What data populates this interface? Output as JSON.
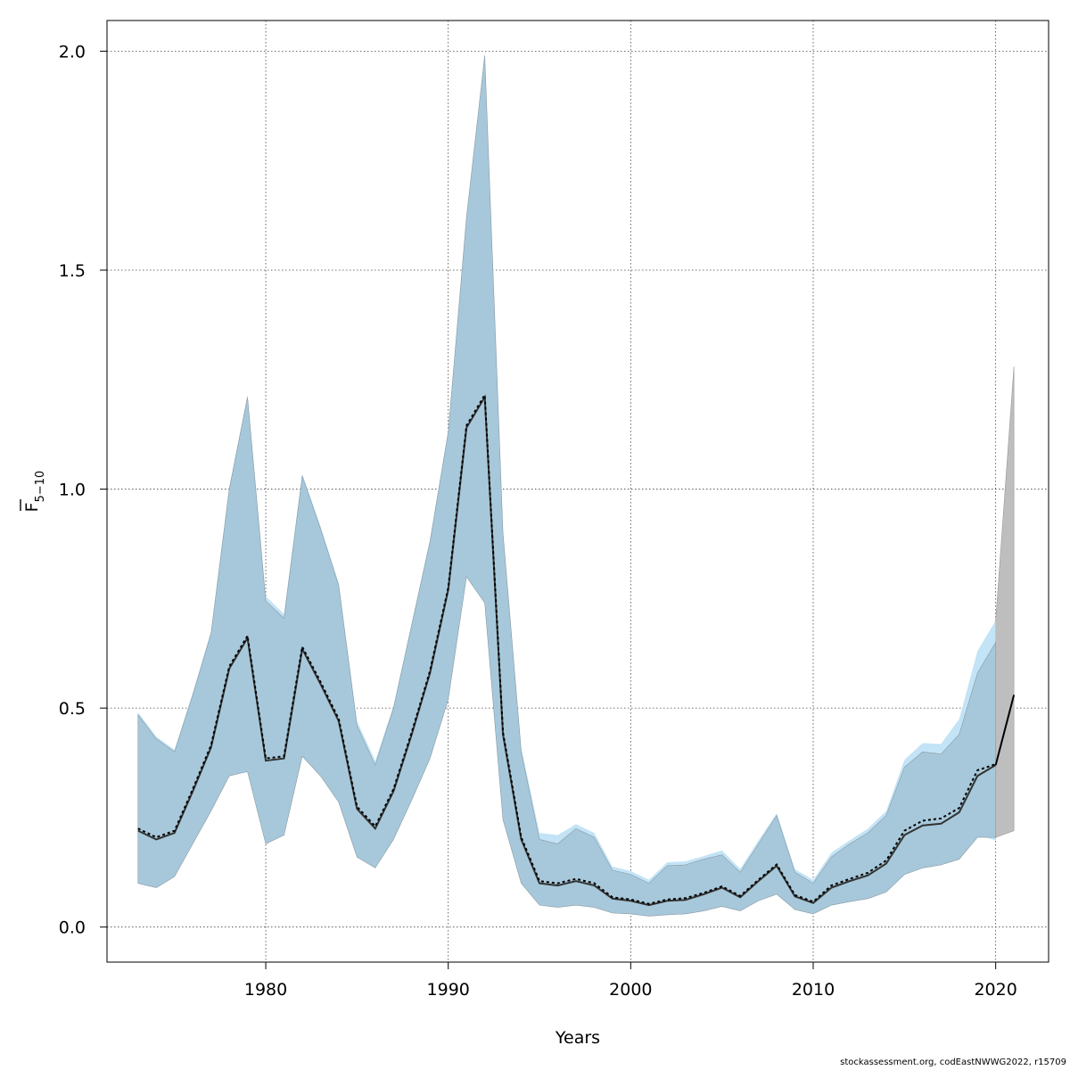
{
  "chart_data": {
    "type": "area",
    "xlabel": "Years",
    "ylabel": "F",
    "ylabel_subscript": "5−10",
    "xlim": [
      1971.3,
      2022.9
    ],
    "ylim": [
      -0.08,
      2.07
    ],
    "x_ticks": [
      1980,
      1990,
      2000,
      2010,
      2020
    ],
    "y_ticks": [
      0.0,
      0.5,
      1.0,
      1.5,
      2.0
    ],
    "x_tick_labels": [
      "1980",
      "1990",
      "2000",
      "2010",
      "2020"
    ],
    "y_tick_labels": [
      "0.0",
      "0.5",
      "1.0",
      "1.5",
      "2.0"
    ],
    "grid": true,
    "colors": {
      "band_current": "#a6c8da",
      "band_alt": "#c3e3f6",
      "band_forecast": "#bebebe",
      "line": "#000000"
    },
    "x": [
      1973,
      1974,
      1975,
      1976,
      1977,
      1978,
      1979,
      1980,
      1981,
      1982,
      1983,
      1984,
      1985,
      1986,
      1987,
      1988,
      1989,
      1990,
      1991,
      1992,
      1993,
      1994,
      1995,
      1996,
      1997,
      1998,
      1999,
      2000,
      2001,
      2002,
      2003,
      2004,
      2005,
      2006,
      2007,
      2008,
      2009,
      2010,
      2011,
      2012,
      2013,
      2014,
      2015,
      2016,
      2017,
      2018,
      2019,
      2020
    ],
    "series": [
      {
        "role": "current",
        "values": [
          0.22,
          0.2,
          0.215,
          0.31,
          0.41,
          0.59,
          0.66,
          0.38,
          0.385,
          0.635,
          0.555,
          0.47,
          0.27,
          0.225,
          0.31,
          0.44,
          0.58,
          0.77,
          1.14,
          1.21,
          0.44,
          0.2,
          0.1,
          0.095,
          0.105,
          0.095,
          0.065,
          0.06,
          0.05,
          0.06,
          0.062,
          0.075,
          0.09,
          0.068,
          0.105,
          0.14,
          0.07,
          0.055,
          0.09,
          0.105,
          0.118,
          0.145,
          0.21,
          0.232,
          0.236,
          0.262,
          0.345,
          0.37
        ],
        "lower": [
          0.1,
          0.09,
          0.115,
          0.19,
          0.265,
          0.345,
          0.355,
          0.19,
          0.21,
          0.39,
          0.345,
          0.285,
          0.16,
          0.135,
          0.2,
          0.29,
          0.385,
          0.52,
          0.8,
          0.74,
          0.245,
          0.1,
          0.05,
          0.045,
          0.05,
          0.045,
          0.032,
          0.03,
          0.025,
          0.028,
          0.03,
          0.037,
          0.047,
          0.037,
          0.06,
          0.075,
          0.04,
          0.03,
          0.05,
          0.058,
          0.065,
          0.08,
          0.12,
          0.135,
          0.142,
          0.155,
          0.205,
          0.205
        ],
        "upper": [
          0.485,
          0.43,
          0.4,
          0.53,
          0.67,
          1.0,
          1.21,
          0.745,
          0.705,
          1.03,
          0.91,
          0.78,
          0.46,
          0.37,
          0.5,
          0.69,
          0.88,
          1.13,
          1.62,
          1.99,
          0.9,
          0.4,
          0.2,
          0.19,
          0.225,
          0.205,
          0.13,
          0.12,
          0.1,
          0.14,
          0.142,
          0.155,
          0.165,
          0.125,
          0.19,
          0.255,
          0.125,
          0.1,
          0.16,
          0.19,
          0.215,
          0.255,
          0.365,
          0.4,
          0.395,
          0.44,
          0.58,
          0.65
        ]
      },
      {
        "role": "alternative",
        "values": [
          0.225,
          0.205,
          0.22,
          0.315,
          0.415,
          0.595,
          0.665,
          0.385,
          0.39,
          0.64,
          0.56,
          0.475,
          0.275,
          0.23,
          0.315,
          0.445,
          0.585,
          0.775,
          1.145,
          1.215,
          0.445,
          0.205,
          0.105,
          0.1,
          0.11,
          0.1,
          0.068,
          0.063,
          0.053,
          0.063,
          0.066,
          0.078,
          0.093,
          0.071,
          0.108,
          0.143,
          0.073,
          0.058,
          0.095,
          0.11,
          0.124,
          0.152,
          0.22,
          0.243,
          0.248,
          0.272,
          0.358,
          0.372
        ],
        "lower": [
          0.1,
          0.09,
          0.115,
          0.19,
          0.265,
          0.345,
          0.355,
          0.195,
          0.215,
          0.39,
          0.345,
          0.285,
          0.165,
          0.14,
          0.2,
          0.29,
          0.385,
          0.52,
          0.8,
          0.74,
          0.25,
          0.105,
          0.055,
          0.05,
          0.055,
          0.048,
          0.035,
          0.032,
          0.027,
          0.03,
          0.032,
          0.04,
          0.05,
          0.04,
          0.062,
          0.078,
          0.042,
          0.032,
          0.053,
          0.062,
          0.07,
          0.085,
          0.125,
          0.142,
          0.15,
          0.162,
          0.21,
          0.198
        ],
        "upper": [
          0.49,
          0.435,
          0.405,
          0.535,
          0.675,
          1.005,
          1.215,
          0.755,
          0.715,
          1.035,
          0.915,
          0.785,
          0.47,
          0.38,
          0.505,
          0.695,
          0.885,
          1.135,
          1.625,
          1.99,
          0.905,
          0.41,
          0.215,
          0.21,
          0.235,
          0.215,
          0.138,
          0.128,
          0.108,
          0.148,
          0.15,
          0.162,
          0.175,
          0.133,
          0.198,
          0.26,
          0.132,
          0.108,
          0.17,
          0.198,
          0.225,
          0.265,
          0.382,
          0.42,
          0.418,
          0.475,
          0.63,
          0.7
        ]
      },
      {
        "role": "forecast",
        "x": [
          2020,
          2021
        ],
        "values": [
          0.37,
          0.53
        ],
        "lower": [
          0.205,
          0.22
        ],
        "upper": [
          0.7,
          1.28
        ]
      }
    ]
  },
  "footer": {
    "note": "stockassessment.org, codEastNWWG2022, r15709"
  }
}
